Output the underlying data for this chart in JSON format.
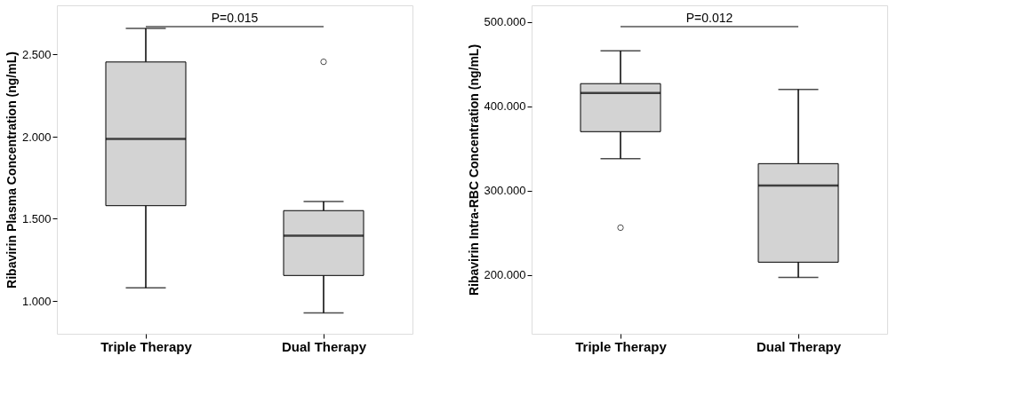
{
  "chart_data": [
    {
      "type": "box",
      "categories": [
        "Triple Therapy",
        "Dual Therapy"
      ],
      "ylabel": "Ribavirin Plasma Concentration (ng/mL)",
      "boxes": [
        {
          "low": 1.08,
          "q1": 1.58,
          "median": 1.986,
          "q3": 2.455,
          "high": 2.66
        },
        {
          "low": 0.927,
          "q1": 1.155,
          "median": 1.397,
          "q3": 1.55,
          "high": 1.605,
          "outliers": [
            2.456
          ]
        }
      ],
      "color": "#d3d3d3",
      "ylim": [
        0.8,
        2.8
      ],
      "yticks": [
        {
          "value": 1,
          "label": "1.000"
        },
        {
          "value": 1.5,
          "label": "1.500"
        },
        {
          "value": 2,
          "label": "2.000"
        },
        {
          "value": 2.5,
          "label": "2.500"
        }
      ],
      "grid": false,
      "annotations": [
        "P=0.015"
      ]
    },
    {
      "type": "box",
      "categories": [
        "Triple Therapy",
        "Dual Therapy"
      ],
      "ylabel": "Ribavirin Intra-RBC Concentration (ng/mL)",
      "boxes": [
        {
          "low": 338,
          "q1": 370,
          "median": 416,
          "q3": 427,
          "high": 466,
          "outliers": [
            256
          ]
        },
        {
          "low": 197,
          "q1": 215,
          "median": 306,
          "q3": 332,
          "high": 420
        }
      ],
      "color": "#d3d3d3",
      "ylim": [
        130,
        520
      ],
      "yticks": [
        {
          "value": 200,
          "label": "200.000"
        },
        {
          "value": 300,
          "label": "300.000"
        },
        {
          "value": 400,
          "label": "400.000"
        },
        {
          "value": 500,
          "label": "500.000"
        }
      ],
      "grid": false,
      "annotations": [
        "P=0.012"
      ]
    }
  ]
}
